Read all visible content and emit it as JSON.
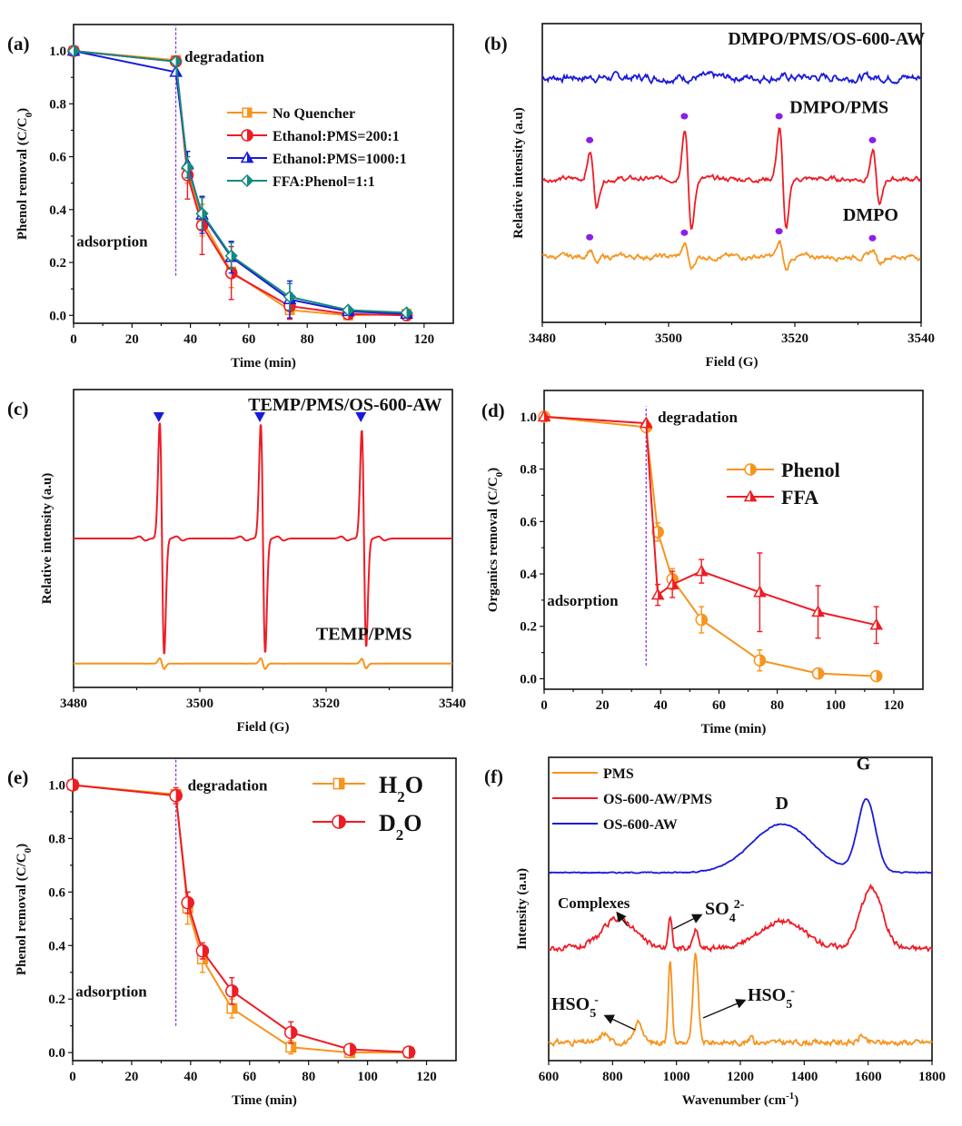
{
  "chart_data": [
    {
      "id": "a",
      "type": "line",
      "panel_label": "(a)",
      "xlabel": "Time (min)",
      "ylabel": "Phenol removal (C/C0)",
      "ylabel_main": "Phenol removal (C/C",
      "ylabel_sub": "0",
      "ylabel_end": ")",
      "xlim": [
        0,
        130
      ],
      "ylim": [
        -0.03,
        1.1
      ],
      "xticks": [
        0,
        20,
        40,
        60,
        80,
        100,
        120
      ],
      "yticks": [
        0.0,
        0.2,
        0.4,
        0.6,
        0.8,
        1.0
      ],
      "ytick_labels": [
        "0.0",
        "0.2",
        "0.4",
        "0.6",
        "0.8",
        "1.0"
      ],
      "annotations": [
        {
          "text": "degradation",
          "x": 38,
          "y": 0.98
        },
        {
          "text": "adsorption",
          "x": 1,
          "y": 0.28
        }
      ],
      "vline_x": 35,
      "vline_y": [
        0.15,
        1.1
      ],
      "legend_position": "center-right",
      "x": [
        0,
        35,
        39,
        44,
        54,
        74,
        94,
        114
      ],
      "series": [
        {
          "name": "No Quencher",
          "color": "#f7941d",
          "marker": "square",
          "values": [
            1.0,
            0.965,
            0.55,
            0.36,
            0.165,
            0.02,
            0.0,
            0.005
          ],
          "err": [
            0,
            0.01,
            0.05,
            0.06,
            0.06,
            0.03,
            0.01,
            0.005
          ]
        },
        {
          "name": "Ethanol:PMS=200:1",
          "color": "#ee1c25",
          "marker": "circle",
          "values": [
            1.0,
            0.96,
            0.53,
            0.34,
            0.16,
            0.035,
            0.005,
            0.0
          ],
          "err": [
            0,
            0.01,
            0.09,
            0.11,
            0.1,
            0.05,
            0.01,
            0.005
          ]
        },
        {
          "name": "Ethanol:PMS=1000:1",
          "color": "#1a1adb",
          "marker": "triangle",
          "values": [
            1.0,
            0.92,
            0.57,
            0.38,
            0.22,
            0.06,
            0.015,
            0.005
          ],
          "err": [
            0,
            0.01,
            0.05,
            0.07,
            0.06,
            0.07,
            0.01,
            0.005
          ]
        },
        {
          "name": "FFA:Phenol=1:1",
          "color": "#138a80",
          "marker": "diamond",
          "values": [
            1.0,
            0.96,
            0.56,
            0.385,
            0.225,
            0.07,
            0.02,
            0.01
          ],
          "err": [
            0,
            0.01,
            0.04,
            0.06,
            0.05,
            0.05,
            0.01,
            0.005
          ]
        }
      ]
    },
    {
      "id": "b",
      "type": "line",
      "panel_label": "(b)",
      "xlabel": "Field (G)",
      "ylabel": "Relative intensity (a.u)",
      "xlim": [
        3480,
        3540
      ],
      "xticks": [
        3480,
        3500,
        3520,
        3540
      ],
      "yticks": [],
      "marker_color": "#8b1ee8",
      "series": [
        {
          "name": "DMPO/PMS/OS-600-AW",
          "color": "#1a1adb",
          "baseline": 0.82,
          "peaks": [],
          "noise": 0.012,
          "peak_amp": 0
        },
        {
          "name": "DMPO/PMS",
          "color": "#ee1c25",
          "baseline": 0.48,
          "peaks": [
            3487.5,
            3502.5,
            3517.5,
            3532.3
          ],
          "peak_amps": [
            0.09,
            0.17,
            0.17,
            0.09
          ],
          "noise": 0.008
        },
        {
          "name": "DMPO",
          "color": "#f7941d",
          "baseline": 0.22,
          "peaks": [
            3487.5,
            3502.5,
            3517.5,
            3532.3
          ],
          "peak_amps": [
            0.025,
            0.04,
            0.045,
            0.022
          ],
          "noise": 0.008
        }
      ],
      "labels": [
        {
          "text": "DMPO/PMS/OS-600-AW",
          "x": 3525,
          "y": 0.93
        },
        {
          "text": "DMPO/PMS",
          "x": 3527,
          "y": 0.7
        },
        {
          "text": "DMPO",
          "x": 3532,
          "y": 0.34
        }
      ],
      "peak_markers": "circle"
    },
    {
      "id": "c",
      "type": "line",
      "panel_label": "(c)",
      "xlabel": "Field (G)",
      "ylabel": "Relative intensity (a.u)",
      "xlim": [
        3480,
        3540
      ],
      "xticks": [
        3480,
        3500,
        3520,
        3540
      ],
      "yticks": [],
      "marker_color": "#1a1adb",
      "peaks": [
        3494,
        3510,
        3526
      ],
      "series": [
        {
          "name": "TEMP/PMS/OS-600-AW",
          "color": "#ee1c25",
          "baseline": 0.5,
          "peak_amps": [
            0.39,
            0.385,
            0.365
          ]
        },
        {
          "name": "TEMP/PMS",
          "color": "#f7941d",
          "baseline": 0.08,
          "peak_amps": [
            0.018,
            0.018,
            0.016
          ]
        }
      ],
      "labels": [
        {
          "text": "TEMP/PMS/OS-600-AW",
          "x": 3523,
          "y": 0.93
        },
        {
          "text": "TEMP/PMS",
          "x": 3526,
          "y": 0.16
        }
      ],
      "peak_markers": "triangle-down"
    },
    {
      "id": "d",
      "type": "line",
      "panel_label": "(d)",
      "xlabel": "Time (min)",
      "ylabel_main": "Organics removal (C/C",
      "ylabel_sub": "0",
      "ylabel_end": ")",
      "xlim": [
        0,
        130
      ],
      "ylim": [
        -0.04,
        1.1
      ],
      "xticks": [
        0,
        20,
        40,
        60,
        80,
        100,
        120
      ],
      "yticks": [
        0.0,
        0.2,
        0.4,
        0.6,
        0.8,
        1.0
      ],
      "ytick_labels": [
        "0.0",
        "0.2",
        "0.4",
        "0.6",
        "0.8",
        "1.0"
      ],
      "vline_x": 35,
      "vline_y": [
        0.05,
        1.04
      ],
      "annotations": [
        {
          "text": "degradation",
          "x": 39,
          "y": 1.0
        },
        {
          "text": "adsorption",
          "x": 1,
          "y": 0.3
        }
      ],
      "legend_position": "center-right",
      "x": [
        0,
        35,
        39,
        44,
        54,
        74,
        94,
        114
      ],
      "series": [
        {
          "name": "Phenol",
          "color": "#f7941d",
          "marker": "circle",
          "values": [
            1.0,
            0.96,
            0.56,
            0.38,
            0.225,
            0.07,
            0.02,
            0.01
          ],
          "err": [
            0,
            0.01,
            0.035,
            0.04,
            0.05,
            0.04,
            0.01,
            0.01
          ]
        },
        {
          "name": "FFA",
          "color": "#ee1c25",
          "marker": "triangle",
          "values": [
            1.0,
            0.975,
            0.32,
            0.36,
            0.41,
            0.33,
            0.255,
            0.205
          ],
          "err": [
            0,
            0.01,
            0.04,
            0.05,
            0.045,
            0.15,
            0.1,
            0.07
          ]
        }
      ]
    },
    {
      "id": "e",
      "type": "line",
      "panel_label": "(e)",
      "xlabel": "Time (min)",
      "ylabel_main": "Phenol removal (C/C",
      "ylabel_sub": "0",
      "ylabel_end": ")",
      "xlim": [
        0,
        130
      ],
      "ylim": [
        -0.03,
        1.1
      ],
      "xticks": [
        0,
        20,
        40,
        60,
        80,
        100,
        120
      ],
      "yticks": [
        0.0,
        0.2,
        0.4,
        0.6,
        0.8,
        1.0
      ],
      "ytick_labels": [
        "0.0",
        "0.2",
        "0.4",
        "0.6",
        "0.8",
        "1.0"
      ],
      "vline_x": 35,
      "vline_y": [
        0.1,
        1.1
      ],
      "annotations": [
        {
          "text": "degradation",
          "x": 39,
          "y": 1.0
        },
        {
          "text": "adsorption",
          "x": 1,
          "y": 0.23
        }
      ],
      "legend_position": "top-right",
      "x": [
        0,
        35,
        39,
        44,
        54,
        74,
        94,
        114
      ],
      "series": [
        {
          "name": "H2O",
          "name_main": "H",
          "name_sub": "2",
          "name_end": "O",
          "color": "#f7941d",
          "marker": "square",
          "values": [
            1.0,
            0.965,
            0.54,
            0.35,
            0.165,
            0.02,
            0.0,
            0.0
          ],
          "err": [
            0,
            0.01,
            0.06,
            0.05,
            0.035,
            0.025,
            0.005,
            0.005
          ]
        },
        {
          "name": "D2O",
          "name_main": "D",
          "name_sub": "2",
          "name_end": "O",
          "color": "#ee1c25",
          "marker": "circle",
          "values": [
            1.0,
            0.96,
            0.56,
            0.38,
            0.23,
            0.075,
            0.012,
            0.002
          ],
          "err": [
            0,
            0.03,
            0.04,
            0.03,
            0.05,
            0.04,
            0.005,
            0.005
          ]
        }
      ]
    },
    {
      "id": "f",
      "type": "line",
      "panel_label": "(f)",
      "xlabel_main": "Wavenumber (cm",
      "xlabel_sup": "-1",
      "xlabel_end": ")",
      "ylabel": "Intensity (a.u)",
      "xlim": [
        600,
        1800
      ],
      "xticks": [
        600,
        800,
        1000,
        1200,
        1400,
        1600,
        1800
      ],
      "yticks": [],
      "legend_position": "top-left",
      "series": [
        {
          "name": "PMS",
          "color": "#f7941d",
          "baseline": 0.06,
          "peaks": [
            {
              "x": 775,
              "h": 0.03,
              "w": 12
            },
            {
              "x": 882,
              "h": 0.07,
              "w": 12
            },
            {
              "x": 980,
              "h": 0.27,
              "w": 6
            },
            {
              "x": 1060,
              "h": 0.29,
              "w": 8
            },
            {
              "x": 1235,
              "h": 0.03,
              "w": 5
            },
            {
              "x": 1580,
              "h": 0.025,
              "w": 8
            }
          ]
        },
        {
          "name": "OS-600-AW/PMS",
          "color": "#ee1c25",
          "baseline": 0.37,
          "peaks": [
            {
              "x": 820,
              "h": 0.1,
              "w": 50
            },
            {
              "x": 980,
              "h": 0.1,
              "w": 6
            },
            {
              "x": 1060,
              "h": 0.06,
              "w": 8
            },
            {
              "x": 1330,
              "h": 0.09,
              "w": 70
            },
            {
              "x": 1610,
              "h": 0.2,
              "w": 35
            }
          ]
        },
        {
          "name": "OS-600-AW",
          "color": "#1a1adb",
          "baseline": 0.62,
          "peaks": [
            {
              "x": 1330,
              "h": 0.16,
              "w": 95
            },
            {
              "x": 1595,
              "h": 0.24,
              "w": 28
            }
          ]
        }
      ],
      "annotations": [
        {
          "text": "D",
          "x": 1330,
          "y": 0.83
        },
        {
          "text": "G",
          "x": 1585,
          "y": 0.96
        },
        {
          "text": "Complexes",
          "x": 740,
          "y": 0.55
        },
        {
          "text_main": "SO",
          "text_sub": "4",
          "text_sup": "2-",
          "x": 1110,
          "y": 0.55
        },
        {
          "text_main": "HSO",
          "text_sub": "5",
          "text_sup": "-",
          "x": 615,
          "y": 0.19
        },
        {
          "text_main": "HSO",
          "text_sub": "5",
          "text_sup": "-",
          "x": 1240,
          "y": 0.22
        }
      ]
    }
  ]
}
